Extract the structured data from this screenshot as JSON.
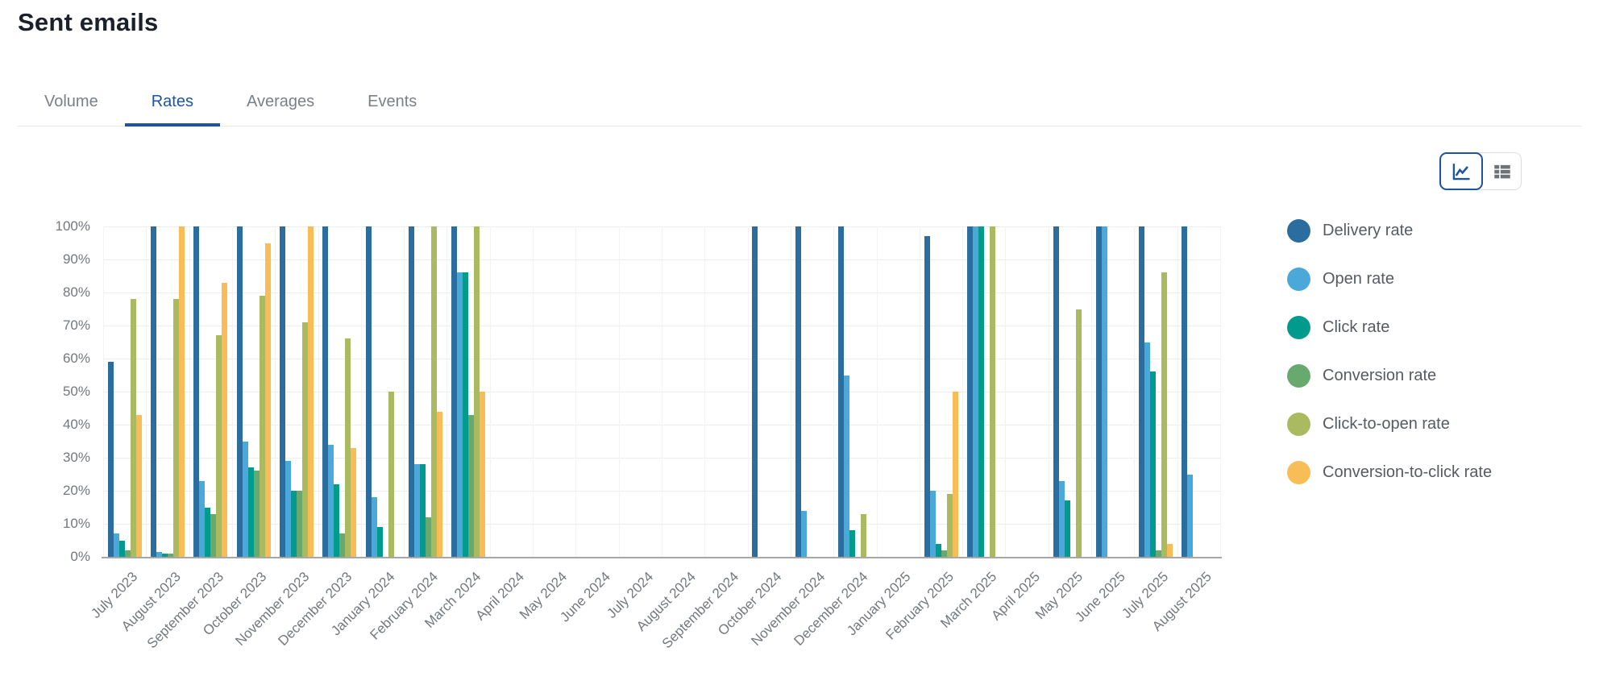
{
  "page": {
    "title": "Sent emails"
  },
  "tabs": [
    {
      "label": "Volume",
      "active": false
    },
    {
      "label": "Rates",
      "active": true
    },
    {
      "label": "Averages",
      "active": false
    },
    {
      "label": "Events",
      "active": false
    }
  ],
  "view_toggle": {
    "selected": "chart",
    "chart_button_icon": "line-chart-icon",
    "table_button_icon": "table-view-icon"
  },
  "colors": {
    "accent_blue": "#1d54a2",
    "gridline": "#ededed",
    "axis_line": "#a7a7a7",
    "axis_text": "#73787d",
    "legend_text": "#565b61"
  },
  "chart_data": {
    "type": "bar",
    "title": "",
    "xlabel": "",
    "ylabel": "",
    "ylim": [
      0,
      100
    ],
    "ytick_step": 10,
    "ytick_suffix": "%",
    "grid": true,
    "legend_position": "right",
    "categories": [
      "July 2023",
      "August 2023",
      "September 2023",
      "October 2023",
      "November 2023",
      "December 2023",
      "January 2024",
      "February 2024",
      "March 2024",
      "April 2024",
      "May 2024",
      "June 2024",
      "July 2024",
      "August 2024",
      "September 2024",
      "October 2024",
      "November 2024",
      "December 2024",
      "January 2025",
      "February 2025",
      "March 2025",
      "April 2025",
      "May 2025",
      "June 2025",
      "July 2025",
      "August 2025"
    ],
    "series": [
      {
        "name": "Delivery rate",
        "color": "#2a6d9e",
        "values": [
          59,
          100,
          100,
          100,
          100,
          100,
          100,
          100,
          100,
          0,
          0,
          0,
          0,
          0,
          0,
          100,
          100,
          100,
          0,
          97,
          100,
          0,
          100,
          100,
          100,
          100
        ]
      },
      {
        "name": "Open rate",
        "color": "#4aa9d8",
        "values": [
          7,
          1.5,
          23,
          35,
          29,
          34,
          18,
          28,
          86,
          0,
          0,
          0,
          0,
          0,
          0,
          0,
          14,
          55,
          0,
          20,
          100,
          0,
          23,
          100,
          65,
          25
        ]
      },
      {
        "name": "Click rate",
        "color": "#009b8d",
        "values": [
          5,
          1,
          15,
          27,
          20,
          22,
          9,
          28,
          86,
          0,
          0,
          0,
          0,
          0,
          0,
          0,
          0,
          8,
          0,
          4,
          100,
          0,
          17,
          0,
          56,
          0
        ]
      },
      {
        "name": "Conversion rate",
        "color": "#68aa6e",
        "values": [
          2,
          1,
          13,
          26,
          20,
          7,
          0,
          12,
          43,
          0,
          0,
          0,
          0,
          0,
          0,
          0,
          0,
          0,
          0,
          2,
          0,
          0,
          0,
          0,
          2,
          0
        ]
      },
      {
        "name": "Click-to-open rate",
        "color": "#a9ba61",
        "values": [
          78,
          78,
          67,
          79,
          71,
          66,
          50,
          100,
          100,
          0,
          0,
          0,
          0,
          0,
          0,
          0,
          0,
          13,
          0,
          19,
          100,
          0,
          75,
          0,
          86,
          0
        ]
      },
      {
        "name": "Conversion-to-click rate",
        "color": "#f8bd57",
        "values": [
          43,
          100,
          83,
          95,
          100,
          33,
          0,
          44,
          50,
          0,
          0,
          0,
          0,
          0,
          0,
          0,
          0,
          0,
          0,
          50,
          0,
          0,
          0,
          0,
          4,
          0
        ]
      }
    ]
  }
}
